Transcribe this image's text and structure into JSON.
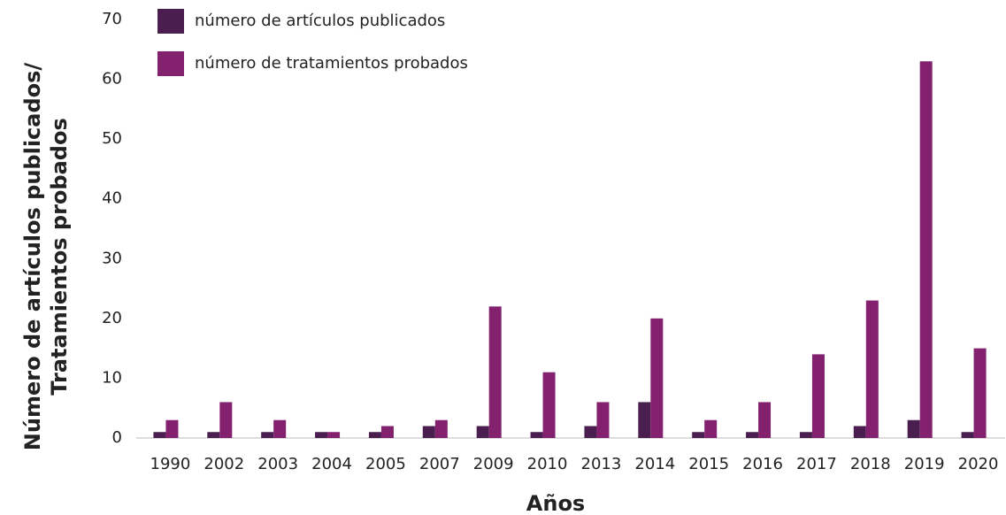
{
  "chart_data": {
    "type": "bar",
    "y_label": [
      "Número de artículos publicados/",
      "Tratamientos probados"
    ],
    "x_label": "Años",
    "categories": [
      "1990",
      "2002",
      "2003",
      "2004",
      "2005",
      "2007",
      "2009",
      "2010",
      "2013",
      "2014",
      "2015",
      "2016",
      "2017",
      "2018",
      "2019",
      "2020"
    ],
    "series": [
      {
        "name": "número de artículos publicados",
        "color": "#4a1f50",
        "values": [
          1,
          1,
          1,
          1,
          1,
          2,
          2,
          1,
          2,
          6,
          1,
          1,
          1,
          2,
          3,
          1
        ]
      },
      {
        "name": "número de tratamientos probados",
        "color": "#83216f",
        "values": [
          3,
          6,
          3,
          1,
          2,
          3,
          22,
          11,
          6,
          20,
          3,
          6,
          14,
          23,
          63,
          15
        ]
      }
    ],
    "ylim": [
      0,
      70
    ],
    "yticks": [
      0,
      10,
      20,
      30,
      40,
      50,
      60,
      70
    ],
    "grid": false,
    "legend": "top-left"
  }
}
